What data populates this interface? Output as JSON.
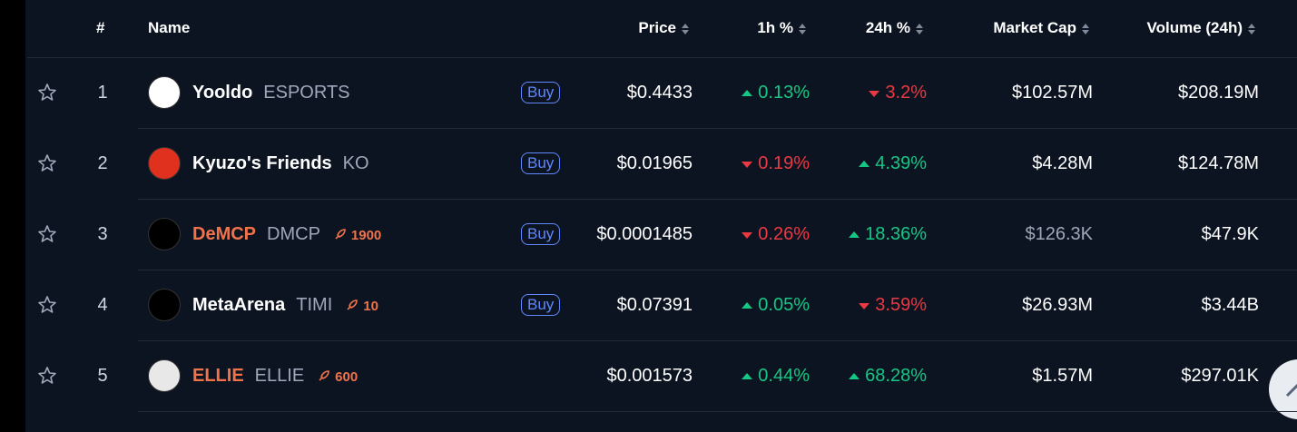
{
  "header": {
    "rank": "#",
    "name": "Name",
    "price": "Price",
    "change_1h": "1h %",
    "change_24h": "24h %",
    "market_cap": "Market Cap",
    "volume": "Volume (24h)"
  },
  "rows": [
    {
      "rank": "1",
      "name": "Yooldo",
      "symbol": "ESPORTS",
      "highlight": false,
      "boost": null,
      "buy": "Buy",
      "price": "$0.4433",
      "change_1h": {
        "dir": "up",
        "text": "0.13%"
      },
      "change_24h": {
        "dir": "down",
        "text": "3.2%"
      },
      "market_cap": "$102.57M",
      "market_cap_dim": false,
      "volume": "$208.19M"
    },
    {
      "rank": "2",
      "name": "Kyuzo's Friends",
      "symbol": "KO",
      "highlight": false,
      "boost": null,
      "buy": "Buy",
      "price": "$0.01965",
      "change_1h": {
        "dir": "down",
        "text": "0.19%"
      },
      "change_24h": {
        "dir": "up",
        "text": "4.39%"
      },
      "market_cap": "$4.28M",
      "market_cap_dim": false,
      "volume": "$124.78M"
    },
    {
      "rank": "3",
      "name": "DeMCP",
      "symbol": "DMCP",
      "highlight": true,
      "boost": "1900",
      "buy": "Buy",
      "price": "$0.0001485",
      "change_1h": {
        "dir": "down",
        "text": "0.26%"
      },
      "change_24h": {
        "dir": "up",
        "text": "18.36%"
      },
      "market_cap": "$126.3K",
      "market_cap_dim": true,
      "volume": "$47.9K"
    },
    {
      "rank": "4",
      "name": "MetaArena",
      "symbol": "TIMI",
      "highlight": false,
      "boost": "10",
      "buy": "Buy",
      "price": "$0.07391",
      "change_1h": {
        "dir": "up",
        "text": "0.05%"
      },
      "change_24h": {
        "dir": "down",
        "text": "3.59%"
      },
      "market_cap": "$26.93M",
      "market_cap_dim": false,
      "volume": "$3.44B"
    },
    {
      "rank": "5",
      "name": "ELLIE",
      "symbol": "ELLIE",
      "highlight": true,
      "boost": "600",
      "buy": null,
      "price": "$0.001573",
      "change_1h": {
        "dir": "up",
        "text": "0.44%"
      },
      "change_24h": {
        "dir": "up",
        "text": "68.28%"
      },
      "market_cap": "$1.57M",
      "market_cap_dim": false,
      "volume": "$297.01K"
    }
  ]
}
